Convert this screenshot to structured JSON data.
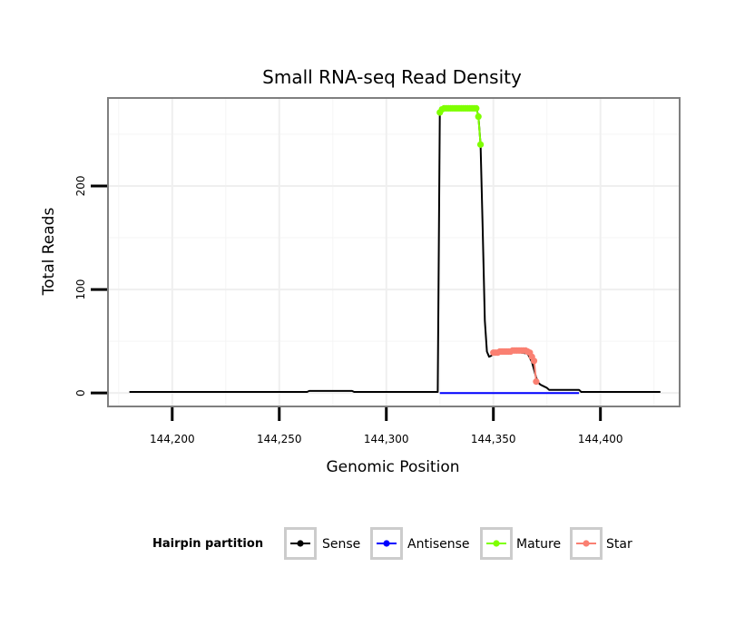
{
  "chart_data": {
    "type": "line",
    "title": "Small RNA-seq Read Density",
    "xlabel": "Genomic Position",
    "ylabel": "Total Reads",
    "xlim": [
      144170,
      144437
    ],
    "ylim": [
      -13,
      285
    ],
    "x_ticks": [
      144200,
      144250,
      144300,
      144350,
      144400
    ],
    "x_tick_labels": [
      "144,200",
      "144,250",
      "144,300",
      "144,350",
      "144,400"
    ],
    "y_ticks": [
      0,
      100,
      200
    ],
    "y_tick_labels": [
      "0",
      "100",
      "200"
    ],
    "grid": true,
    "legend": {
      "title": "Hairpin partition",
      "position": "bottom",
      "entries": [
        {
          "name": "Sense",
          "color": "#000000"
        },
        {
          "name": "Antisense",
          "color": "#0000ff"
        },
        {
          "name": "Mature",
          "color": "#7fff00"
        },
        {
          "name": "Star",
          "color": "#fa8072"
        }
      ]
    },
    "series": [
      {
        "name": "Sense",
        "color": "#000000",
        "kind": "line",
        "x": [
          144180,
          144263,
          144264,
          144284,
          144285,
          144324,
          144325,
          144326,
          144342,
          144343,
          144344,
          144345,
          144346,
          144347,
          144348,
          144349,
          144350,
          144351,
          144352,
          144360,
          144366,
          144368,
          144370,
          144371,
          144372,
          144373,
          144374,
          144375,
          144376,
          144390,
          144391,
          144428
        ],
        "values": [
          1,
          1,
          2,
          2,
          1,
          1,
          270,
          275,
          275,
          268,
          240,
          160,
          70,
          40,
          35,
          36,
          38,
          39,
          40,
          40,
          38,
          30,
          15,
          10,
          8,
          7,
          6,
          5,
          3,
          3,
          1,
          1
        ]
      },
      {
        "name": "Antisense",
        "color": "#0000ff",
        "kind": "line",
        "x": [
          144325,
          144390
        ],
        "values": [
          0,
          0
        ]
      },
      {
        "name": "Mature",
        "color": "#7fff00",
        "kind": "points",
        "x": [
          144325,
          144326,
          144327,
          144328,
          144329,
          144330,
          144331,
          144332,
          144333,
          144334,
          144335,
          144336,
          144337,
          144338,
          144339,
          144340,
          144341,
          144342,
          144343,
          144344
        ],
        "values": [
          271,
          274,
          275,
          275,
          275,
          275,
          275,
          275,
          275,
          275,
          275,
          275,
          275,
          275,
          275,
          275,
          275,
          275,
          267,
          240
        ]
      },
      {
        "name": "Star",
        "color": "#fa8072",
        "kind": "points",
        "x": [
          144350,
          144351,
          144352,
          144353,
          144354,
          144355,
          144356,
          144357,
          144358,
          144359,
          144360,
          144361,
          144362,
          144363,
          144364,
          144365,
          144366,
          144367,
          144368,
          144369,
          144370
        ],
        "values": [
          39,
          39,
          39,
          40,
          40,
          40,
          40,
          40,
          40,
          41,
          41,
          41,
          41,
          41,
          41,
          41,
          40,
          39,
          35,
          31,
          11
        ]
      }
    ]
  }
}
